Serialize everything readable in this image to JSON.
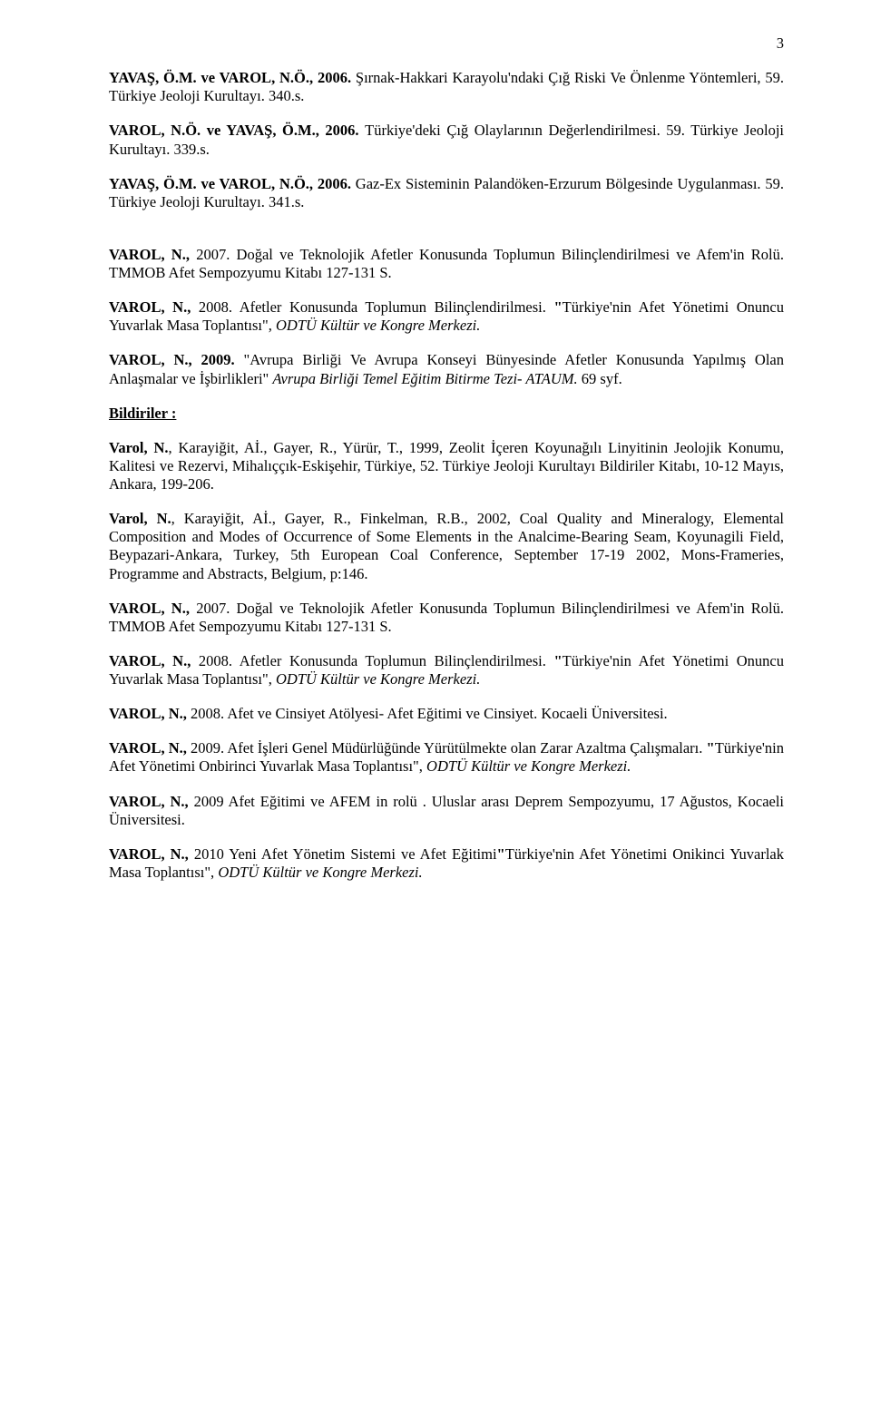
{
  "pageNumber": "3",
  "paragraphs": [
    {
      "runs": [
        {
          "t": "YAVAŞ, Ö.M.  ve VAROL, N.Ö., 2006. ",
          "b": true
        },
        {
          "t": "Şırnak-Hakkari Karayolu'ndaki Çığ Riski Ve Önlenme Yöntemleri, 59. Türkiye Jeoloji Kurultayı. 340.s."
        }
      ]
    },
    {
      "runs": [
        {
          "t": "VAROL, N.Ö. ve YAVAŞ, Ö.M., 2006. ",
          "b": true
        },
        {
          "t": "Türkiye'deki Çığ Olaylarının Değerlendirilmesi. 59. Türkiye Jeoloji Kurultayı. 339.s."
        }
      ]
    },
    {
      "runs": [
        {
          "t": "YAVAŞ, Ö.M.  ve VAROL, N.Ö., 2006. ",
          "b": true
        },
        {
          "t": "Gaz-Ex Sisteminin Palandöken-Erzurum Bölgesinde Uygulanması. 59. Türkiye Jeoloji Kurultayı. 341.s."
        }
      ],
      "extraGap": true
    },
    {
      "runs": [
        {
          "t": "VAROL, N., ",
          "b": true
        },
        {
          "t": "2007. Doğal ve Teknolojik Afetler Konusunda Toplumun Bilinçlendirilmesi ve Afem'in Rolü. TMMOB Afet Sempozyumu Kitabı 127-131 S."
        }
      ]
    },
    {
      "runs": [
        {
          "t": "VAROL, N., ",
          "b": true
        },
        {
          "t": " 2008. Afetler Konusunda Toplumun Bilinçlendirilmesi. "
        },
        {
          "t": "\"",
          "b": true
        },
        {
          "t": "Türkiye'nin Afet Yönetimi Onuncu Yuvarlak Masa Toplantısı\", "
        },
        {
          "t": "ODTÜ Kültür ve Kongre Merkezi.",
          "i": true
        }
      ]
    },
    {
      "runs": [
        {
          "t": "VAROL, N., 2009. ",
          "b": true
        },
        {
          "t": "\"Avrupa Birliği Ve Avrupa Konseyi Bünyesinde Afetler Konusunda Yapılmış Olan Anlaşmalar ve İşbirlikleri\" "
        },
        {
          "t": "Avrupa Birliği Temel Eğitim Bitirme Tezi- ATAUM. ",
          "i": true
        },
        {
          "t": "69 syf."
        }
      ]
    }
  ],
  "sectionHeading": "Bildiriler :",
  "bildiriler": [
    {
      "runs": [
        {
          "t": "Varol, N.",
          "b": true
        },
        {
          "t": ", Karayiğit, Aİ., Gayer, R., Yürür, T., 1999, Zeolit İçeren Koyunağılı Linyitinin Jeolojik Konumu, Kalitesi ve Rezervi, Mihalıççık-Eskişehir, Türkiye, 52. Türkiye Jeoloji Kurultayı Bildiriler Kitabı, 10-12 Mayıs, Ankara, 199-206."
        }
      ]
    },
    {
      "runs": [
        {
          "t": "Varol, N.",
          "b": true
        },
        {
          "t": ", Karayiğit, Aİ., Gayer, R., Finkelman, R.B., 2002, Coal Quality and Mineralogy, Elemental Composition and Modes of Occurrence of Some Elements in the Analcime-Bearing Seam, Koyunagili Field, Beypazari-Ankara, Turkey, 5th European Coal Conference, September 17-19 2002, Mons-Frameries, Programme and Abstracts, Belgium, p:146."
        }
      ]
    },
    {
      "runs": [
        {
          "t": "VAROL, N., ",
          "b": true
        },
        {
          "t": "2007. Doğal ve Teknolojik Afetler Konusunda Toplumun Bilinçlendirilmesi ve Afem'in Rolü. TMMOB Afet Sempozyumu Kitabı 127-131 S."
        }
      ]
    },
    {
      "runs": [
        {
          "t": "VAROL, N., ",
          "b": true
        },
        {
          "t": " 2008. Afetler Konusunda Toplumun Bilinçlendirilmesi. "
        },
        {
          "t": "\"",
          "b": true
        },
        {
          "t": "Türkiye'nin Afet Yönetimi Onuncu Yuvarlak Masa Toplantısı\", "
        },
        {
          "t": "ODTÜ Kültür ve Kongre Merkezi.",
          "i": true
        }
      ]
    },
    {
      "runs": [
        {
          "t": "VAROL, N., ",
          "b": true
        },
        {
          "t": " 2008.  Afet ve Cinsiyet Atölyesi- Afet Eğitimi ve Cinsiyet.  Kocaeli Üniversitesi."
        }
      ]
    },
    {
      "runs": [
        {
          "t": "VAROL, N., ",
          "b": true
        },
        {
          "t": " 2009. Afet İşleri Genel Müdürlüğünde Yürütülmekte olan Zarar Azaltma Çalışmaları. "
        },
        {
          "t": "\"",
          "b": true
        },
        {
          "t": "Türkiye'nin Afet Yönetimi Onbirinci Yuvarlak Masa Toplantısı\", "
        },
        {
          "t": "ODTÜ Kültür ve Kongre Merkezi.",
          "i": true
        }
      ]
    },
    {
      "runs": [
        {
          "t": "VAROL, N., ",
          "b": true
        },
        {
          "t": " 2009 Afet Eğitimi ve AFEM in rolü"
        },
        {
          "t": " . "
        },
        {
          "t": "Uluslar arası Deprem Sempozyumu, 17 Ağustos, Kocaeli Üniversitesi."
        }
      ]
    },
    {
      "runs": [
        {
          "t": "VAROL, N., ",
          "b": true
        },
        {
          "t": "2010 "
        },
        {
          "t": "Yeni Afet Yönetim Sistemi ve Afet Eğitimi"
        },
        {
          "t": "\"",
          "b": true
        },
        {
          "t": "Türkiye'nin Afet Yönetimi Onikinci Yuvarlak Masa Toplantısı\", "
        },
        {
          "t": "ODTÜ Kültür ve Kongre Merkezi.",
          "i": true
        }
      ]
    }
  ]
}
